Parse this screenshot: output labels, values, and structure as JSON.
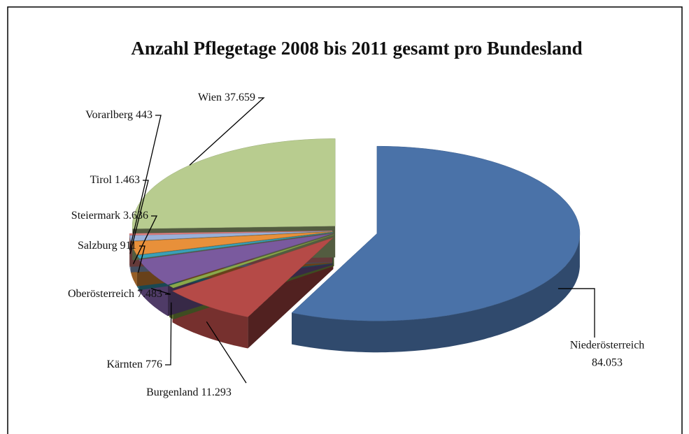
{
  "chart_data": {
    "type": "pie3d",
    "title": "Anzahl Pflegetage 2008 bis 2011 gesamt pro Bundesland",
    "categories": [
      "Niederösterreich",
      "Burgenland",
      "Kärnten",
      "Oberösterreich",
      "Salzburg",
      "Steiermark",
      "Tirol",
      "Vorarlberg",
      "Wien"
    ],
    "values": [
      84053,
      11293,
      776,
      7483,
      911,
      3636,
      1463,
      443,
      37659
    ],
    "value_labels": [
      "84.053",
      "11.293",
      "776",
      "7.483",
      "911",
      "3.636",
      "1.463",
      "443",
      "37.659"
    ],
    "colors": [
      "#4a72a8",
      "#b54a47",
      "#8aa84a",
      "#7a5a9e",
      "#3aa0b8",
      "#e8903a",
      "#9ab0d8",
      "#e08080",
      "#b8cc8f"
    ]
  }
}
